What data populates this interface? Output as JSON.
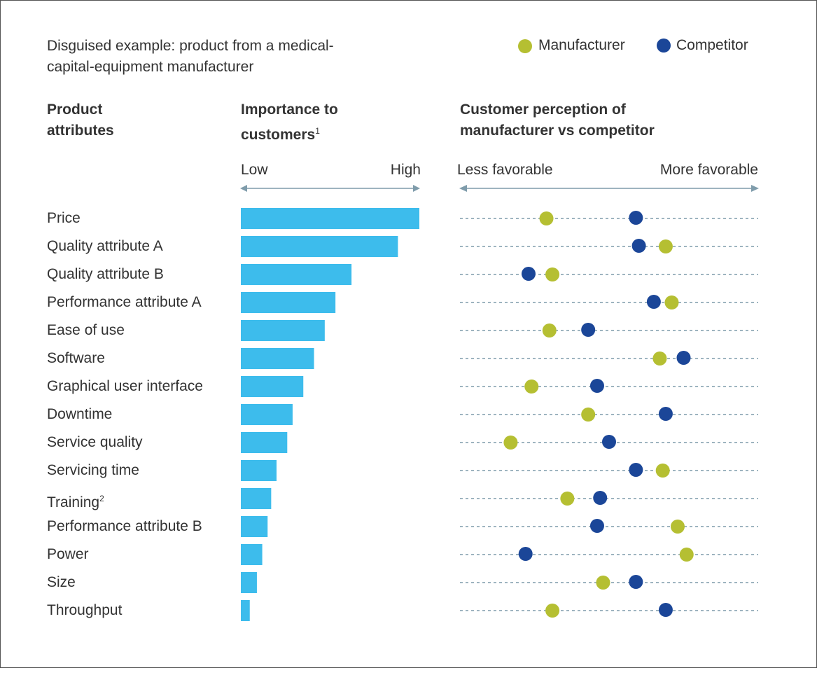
{
  "subtitle_line1": "Disguised example: product from a medical-",
  "subtitle_line2": "capital-equipment manufacturer",
  "colors": {
    "bar": "#3dbcec",
    "manufacturer": "#b5bf32",
    "competitor": "#1b4698",
    "axis": "#7f9cab"
  },
  "chart_data": [
    {
      "type": "bar",
      "orientation": "horizontal",
      "title_line1": "Importance to",
      "title_line2": "customers",
      "title_footnote": "1",
      "axis_low": "Low",
      "axis_high": "High",
      "categories_header_line1": "Product",
      "categories_header_line2": "attributes",
      "categories": [
        "Price",
        "Quality attribute A",
        "Quality attribute B",
        "Performance attribute A",
        "Ease of use",
        "Software",
        "Graphical user interface",
        "Downtime",
        "Service quality",
        "Servicing time",
        "Training",
        "Performance attribute B",
        "Power",
        "Size",
        "Throughput"
      ],
      "category_footnotes": {
        "Training": "2"
      },
      "values": [
        100,
        88,
        62,
        53,
        47,
        41,
        35,
        29,
        26,
        20,
        17,
        15,
        12,
        9,
        5
      ],
      "xlim": [
        0,
        100
      ]
    },
    {
      "type": "scatter",
      "title_line1": "Customer perception of",
      "title_line2": "manufacturer vs competitor",
      "axis_low": "Less favorable",
      "axis_high": "More favorable",
      "xlim": [
        0,
        100
      ],
      "legend_position": "top-right",
      "series": [
        {
          "name": "Manufacturer",
          "values": [
            29,
            69,
            31,
            71,
            30,
            67,
            24,
            43,
            17,
            68,
            36,
            73,
            76,
            48,
            31
          ]
        },
        {
          "name": "Competitor",
          "values": [
            59,
            60,
            23,
            65,
            43,
            75,
            46,
            69,
            50,
            59,
            47,
            46,
            22,
            59,
            69
          ]
        }
      ]
    }
  ]
}
